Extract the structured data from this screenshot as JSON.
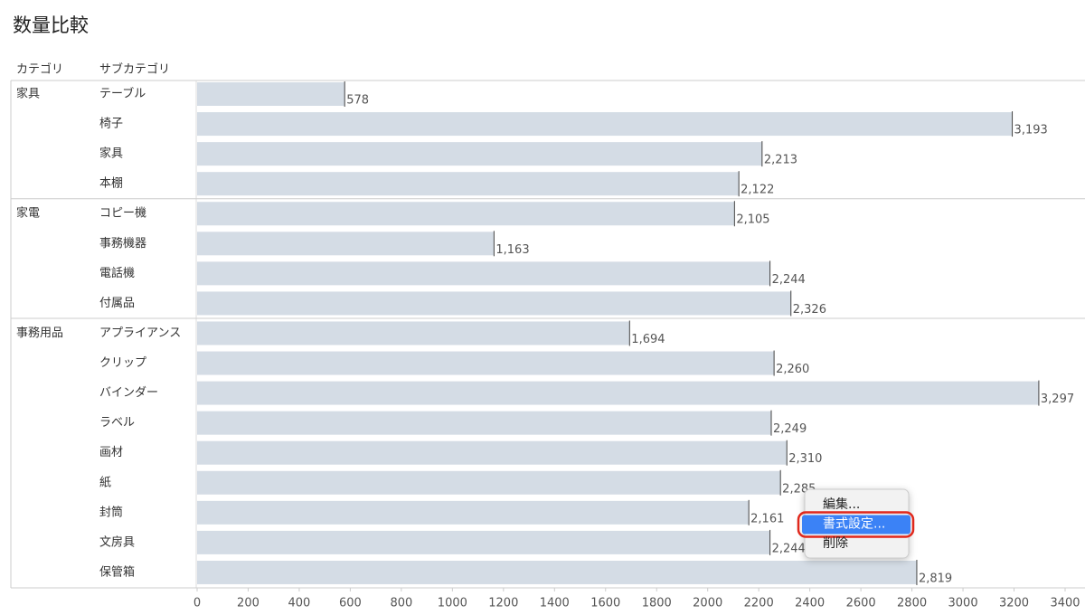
{
  "chart_data": {
    "type": "bar",
    "orientation": "horizontal",
    "title": "数量比較",
    "column_headers": [
      "カテゴリ",
      "サブカテゴリ"
    ],
    "color": "#d4dce5",
    "groups": [
      {
        "name": "家具",
        "categories": [
          "テーブル",
          "椅子",
          "家具",
          "本棚"
        ],
        "values": [
          578,
          3193,
          2213,
          2122
        ],
        "value_labels": [
          "578",
          "3,193",
          "2,213",
          "2,122"
        ]
      },
      {
        "name": "家電",
        "categories": [
          "コピー機",
          "事務機器",
          "電話機",
          "付属品"
        ],
        "values": [
          2105,
          1163,
          2244,
          2326
        ],
        "value_labels": [
          "2,105",
          "1,163",
          "2,244",
          "2,326"
        ]
      },
      {
        "name": "事務用品",
        "categories": [
          "アプライアンス",
          "クリップ",
          "バインダー",
          "ラベル",
          "画材",
          "紙",
          "封筒",
          "文房具",
          "保管箱"
        ],
        "values": [
          1694,
          2260,
          3297,
          2249,
          2310,
          2285,
          2161,
          2244,
          2819
        ],
        "value_labels": [
          "1,694",
          "2,260",
          "3,297",
          "2,249",
          "2,310",
          "2,285",
          "2,161",
          "2,244",
          "2,819"
        ]
      }
    ],
    "xlim": [
      0,
      3400
    ],
    "xticks": [
      0,
      200,
      400,
      600,
      800,
      1000,
      1200,
      1400,
      1600,
      1800,
      2000,
      2200,
      2400,
      2600,
      2800,
      3000,
      3200,
      3400
    ]
  },
  "context_menu": {
    "items": [
      "編集...",
      "書式設定...",
      "削除"
    ],
    "selected": 1
  }
}
